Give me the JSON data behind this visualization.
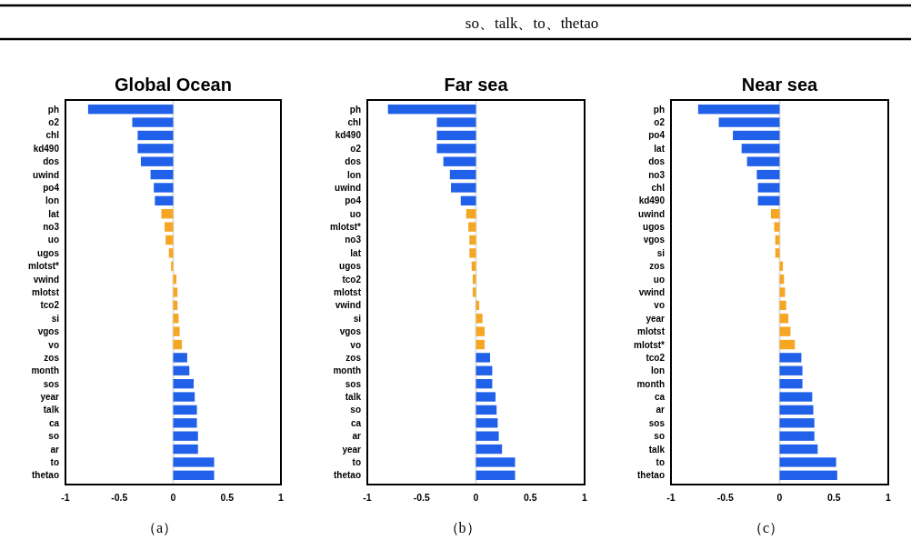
{
  "chart_data": [
    {
      "type": "other",
      "title": "so、talk、to、thetao"
    },
    {
      "type": "bar",
      "orientation": "horizontal",
      "title": "Global Ocean",
      "annotations": [
        "（a）"
      ],
      "categories": [
        "ph",
        "o2",
        "chl",
        "kd490",
        "dos",
        "uwind",
        "po4",
        "lon",
        "lat",
        "no3",
        "uo",
        "ugos",
        "mlotst*",
        "vwind",
        "mlotst",
        "tco2",
        "si",
        "vgos",
        "vo",
        "zos",
        "month",
        "sos",
        "year",
        "talk",
        "ca",
        "so",
        "ar",
        "to",
        "thetao"
      ],
      "values": [
        -0.79,
        -0.38,
        -0.33,
        -0.33,
        -0.3,
        -0.21,
        -0.18,
        -0.17,
        -0.11,
        -0.08,
        -0.07,
        -0.04,
        -0.02,
        0.03,
        0.04,
        0.04,
        0.05,
        0.06,
        0.08,
        0.13,
        0.15,
        0.19,
        0.2,
        0.22,
        0.22,
        0.23,
        0.23,
        0.38,
        0.38
      ],
      "colors": [
        "#2160e8",
        "#2160e8",
        "#2160e8",
        "#2160e8",
        "#2160e8",
        "#2160e8",
        "#2160e8",
        "#2160e8",
        "#f5a623",
        "#f5a623",
        "#f5a623",
        "#f5a623",
        "#f5a623",
        "#f5a623",
        "#f5a623",
        "#f5a623",
        "#f5a623",
        "#f5a623",
        "#f5a623",
        "#2160e8",
        "#2160e8",
        "#2160e8",
        "#2160e8",
        "#2160e8",
        "#2160e8",
        "#2160e8",
        "#2160e8",
        "#2160e8",
        "#2160e8"
      ],
      "xlim": [
        -1,
        1
      ],
      "xticks": [
        -1,
        -0.5,
        0,
        0.5,
        1
      ],
      "ref_lines": [
        {
          "axis": "x",
          "value": 0,
          "color": "#e0e0e0"
        }
      ]
    },
    {
      "type": "bar",
      "orientation": "horizontal",
      "title": "Far sea",
      "annotations": [
        "（b）"
      ],
      "categories": [
        "ph",
        "chl",
        "kd490",
        "o2",
        "dos",
        "lon",
        "uwind",
        "po4",
        "uo",
        "mlotst*",
        "no3",
        "lat",
        "ugos",
        "tco2",
        "mlotst",
        "vwind",
        "si",
        "vgos",
        "vo",
        "zos",
        "month",
        "sos",
        "talk",
        "so",
        "ca",
        "ar",
        "year",
        "to",
        "thetao"
      ],
      "values": [
        -0.81,
        -0.36,
        -0.36,
        -0.36,
        -0.3,
        -0.24,
        -0.23,
        -0.14,
        -0.09,
        -0.07,
        -0.06,
        -0.06,
        -0.04,
        -0.03,
        -0.03,
        0.03,
        0.06,
        0.08,
        0.08,
        0.13,
        0.15,
        0.15,
        0.18,
        0.19,
        0.2,
        0.21,
        0.24,
        0.36,
        0.36
      ],
      "colors": [
        "#2160e8",
        "#2160e8",
        "#2160e8",
        "#2160e8",
        "#2160e8",
        "#2160e8",
        "#2160e8",
        "#2160e8",
        "#f5a623",
        "#f5a623",
        "#f5a623",
        "#f5a623",
        "#f5a623",
        "#f5a623",
        "#f5a623",
        "#f5a623",
        "#f5a623",
        "#f5a623",
        "#f5a623",
        "#2160e8",
        "#2160e8",
        "#2160e8",
        "#2160e8",
        "#2160e8",
        "#2160e8",
        "#2160e8",
        "#2160e8",
        "#2160e8",
        "#2160e8"
      ],
      "xlim": [
        -1,
        1
      ],
      "xticks": [
        -1,
        -0.5,
        0,
        0.5,
        1
      ],
      "ref_lines": [
        {
          "axis": "x",
          "value": 0,
          "color": "#e0e0e0"
        }
      ]
    },
    {
      "type": "bar",
      "orientation": "horizontal",
      "title": "Near sea",
      "annotations": [
        "（c）"
      ],
      "categories": [
        "ph",
        "o2",
        "po4",
        "lat",
        "dos",
        "no3",
        "chl",
        "kd490",
        "uwind",
        "ugos",
        "vgos",
        "si",
        "zos",
        "uo",
        "vwind",
        "vo",
        "year",
        "mlotst",
        "mlotst*",
        "tco2",
        "lon",
        "month",
        "ca",
        "ar",
        "sos",
        "so",
        "talk",
        "to",
        "thetao"
      ],
      "values": [
        -0.75,
        -0.56,
        -0.43,
        -0.35,
        -0.3,
        -0.21,
        -0.2,
        -0.2,
        -0.08,
        -0.05,
        -0.04,
        -0.04,
        0.03,
        0.04,
        0.05,
        0.06,
        0.08,
        0.1,
        0.14,
        0.2,
        0.21,
        0.21,
        0.3,
        0.31,
        0.32,
        0.32,
        0.35,
        0.52,
        0.53
      ],
      "colors": [
        "#2160e8",
        "#2160e8",
        "#2160e8",
        "#2160e8",
        "#2160e8",
        "#2160e8",
        "#2160e8",
        "#2160e8",
        "#f5a623",
        "#f5a623",
        "#f5a623",
        "#f5a623",
        "#f5a623",
        "#f5a623",
        "#f5a623",
        "#f5a623",
        "#f5a623",
        "#f5a623",
        "#f5a623",
        "#2160e8",
        "#2160e8",
        "#2160e8",
        "#2160e8",
        "#2160e8",
        "#2160e8",
        "#2160e8",
        "#2160e8",
        "#2160e8",
        "#2160e8"
      ],
      "xlim": [
        -1,
        1
      ],
      "xticks": [
        -1,
        -0.5,
        0,
        0.5,
        1
      ],
      "ref_lines": [
        {
          "axis": "x",
          "value": 0,
          "color": "#e0e0e0"
        }
      ]
    }
  ]
}
